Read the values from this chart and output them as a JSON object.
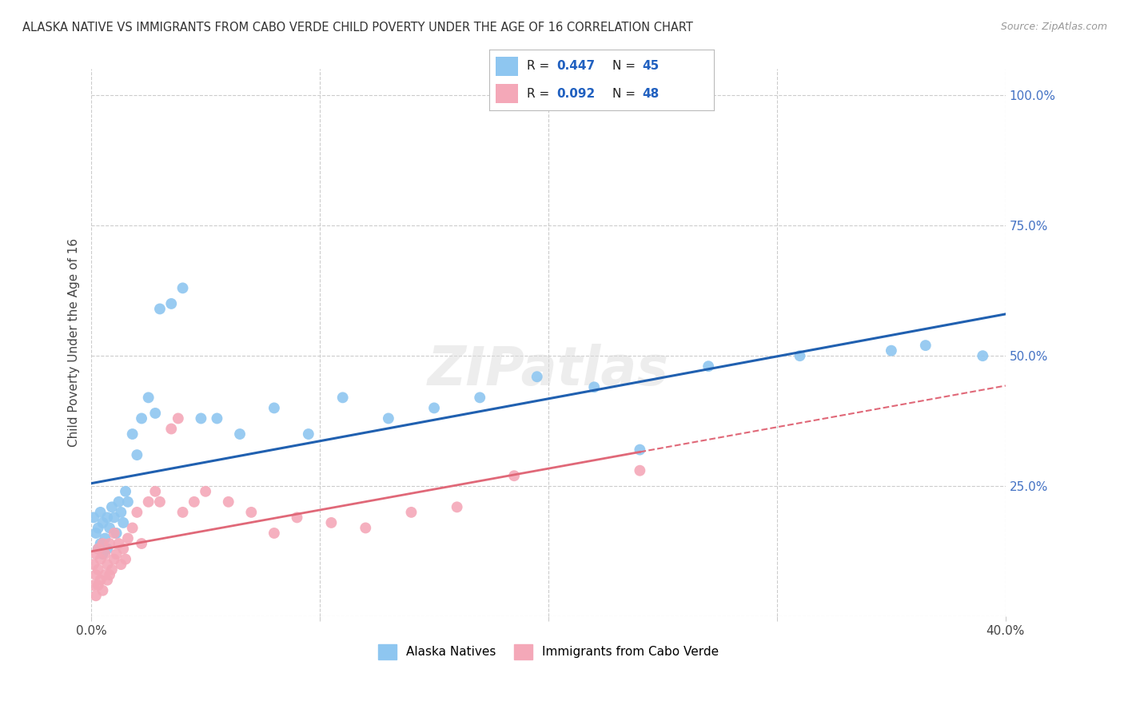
{
  "title": "ALASKA NATIVE VS IMMIGRANTS FROM CABO VERDE CHILD POVERTY UNDER THE AGE OF 16 CORRELATION CHART",
  "source": "Source: ZipAtlas.com",
  "ylabel": "Child Poverty Under the Age of 16",
  "legend_bottom_label1": "Alaska Natives",
  "legend_bottom_label2": "Immigrants from Cabo Verde",
  "blue_color": "#8ec6f0",
  "pink_color": "#f4a8b8",
  "line_blue": "#2060b0",
  "line_pink": "#e06878",
  "background": "#ffffff",
  "grid_color": "#cccccc",
  "xlim": [
    0.0,
    0.4
  ],
  "ylim": [
    0.0,
    1.05
  ],
  "alaska_x": [
    0.001,
    0.002,
    0.003,
    0.003,
    0.004,
    0.004,
    0.005,
    0.005,
    0.006,
    0.007,
    0.007,
    0.008,
    0.009,
    0.01,
    0.011,
    0.012,
    0.013,
    0.014,
    0.015,
    0.016,
    0.018,
    0.02,
    0.022,
    0.025,
    0.028,
    0.03,
    0.035,
    0.04,
    0.048,
    0.055,
    0.065,
    0.08,
    0.095,
    0.11,
    0.13,
    0.15,
    0.17,
    0.195,
    0.22,
    0.24,
    0.27,
    0.31,
    0.35,
    0.365,
    0.39
  ],
  "alaska_y": [
    0.19,
    0.16,
    0.13,
    0.17,
    0.14,
    0.2,
    0.12,
    0.18,
    0.15,
    0.13,
    0.19,
    0.17,
    0.21,
    0.19,
    0.16,
    0.22,
    0.2,
    0.18,
    0.24,
    0.22,
    0.35,
    0.31,
    0.38,
    0.42,
    0.39,
    0.59,
    0.6,
    0.63,
    0.38,
    0.38,
    0.35,
    0.4,
    0.35,
    0.42,
    0.38,
    0.4,
    0.42,
    0.46,
    0.44,
    0.32,
    0.48,
    0.5,
    0.51,
    0.52,
    0.5
  ],
  "caboverde_x": [
    0.001,
    0.001,
    0.002,
    0.002,
    0.002,
    0.003,
    0.003,
    0.003,
    0.004,
    0.004,
    0.005,
    0.005,
    0.006,
    0.006,
    0.007,
    0.007,
    0.008,
    0.008,
    0.009,
    0.01,
    0.01,
    0.011,
    0.012,
    0.013,
    0.014,
    0.015,
    0.016,
    0.018,
    0.02,
    0.022,
    0.025,
    0.028,
    0.03,
    0.035,
    0.038,
    0.04,
    0.045,
    0.05,
    0.06,
    0.07,
    0.08,
    0.09,
    0.105,
    0.12,
    0.14,
    0.16,
    0.185,
    0.24
  ],
  "caboverde_y": [
    0.06,
    0.1,
    0.08,
    0.12,
    0.04,
    0.06,
    0.09,
    0.13,
    0.07,
    0.11,
    0.05,
    0.14,
    0.08,
    0.12,
    0.07,
    0.1,
    0.08,
    0.14,
    0.09,
    0.11,
    0.16,
    0.12,
    0.14,
    0.1,
    0.13,
    0.11,
    0.15,
    0.17,
    0.2,
    0.14,
    0.22,
    0.24,
    0.22,
    0.36,
    0.38,
    0.2,
    0.22,
    0.24,
    0.22,
    0.2,
    0.16,
    0.19,
    0.18,
    0.17,
    0.2,
    0.21,
    0.27,
    0.28
  ]
}
